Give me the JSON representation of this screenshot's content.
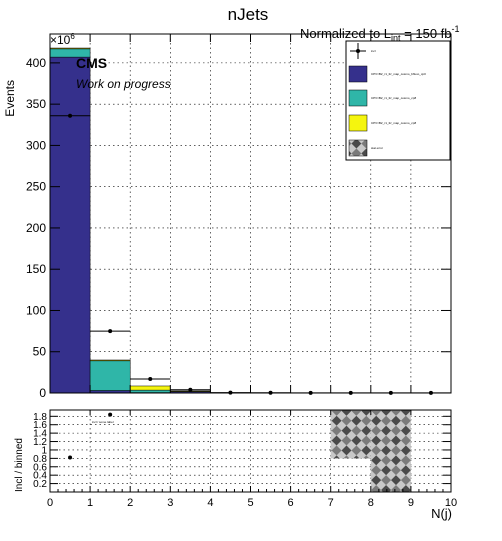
{
  "title": "nJets",
  "normalization": {
    "prefix": "Normalized to L",
    "subscript": "int",
    "suffix": " = 150 fb",
    "superscript": "-1"
  },
  "cms_label": "CMS",
  "cms_sublabel": "Work on progress",
  "colors": {
    "series1": "#35308c",
    "series2": "#2fb6a8",
    "series3": "#f5f50e",
    "frame": "#000000"
  },
  "chart_data": [
    {
      "type": "bar",
      "stacked": true,
      "log_scale": false,
      "grid": true,
      "legend_position": "top-right",
      "xlabel": "N(j)",
      "ylabel": "Events",
      "y_exponent_label": "×10",
      "y_exponent_power": "6",
      "xlim": [
        0,
        10
      ],
      "ylim": [
        0,
        435
      ],
      "x_ticks": [
        0,
        1,
        2,
        3,
        4,
        5,
        6,
        7,
        8,
        9,
        10
      ],
      "y_ticks": [
        0,
        50,
        100,
        150,
        200,
        250,
        300,
        350,
        400
      ],
      "bin_edges": [
        0,
        1,
        2,
        3,
        4,
        5,
        6,
        7,
        8,
        9,
        10
      ],
      "series": [
        {
          "name": "CPV=B2_r1_tlz_map_cosmo_bfluxo_cp0",
          "color_key": "series1",
          "values": [
            407,
            3,
            0.5,
            2,
            0,
            0,
            0,
            0,
            0,
            0
          ]
        },
        {
          "name": "CPV=B2_r1_tlz_map_cosmo_cp8",
          "color_key": "series2",
          "values": [
            10,
            36,
            3,
            0.3,
            0,
            0,
            0,
            0,
            0,
            0
          ]
        },
        {
          "name": "CPV=B2_r1_tlz_map_cosmo_cp8",
          "color_key": "series3",
          "values": [
            1,
            1,
            5,
            0.2,
            0,
            0,
            0,
            0,
            0,
            0
          ]
        }
      ],
      "points": {
        "name": "incl",
        "x": [
          0.5,
          1.5,
          2.5,
          3.5,
          4.5,
          5.5,
          6.5,
          7.5,
          8.5,
          9.5
        ],
        "y": [
          336,
          75,
          17,
          4,
          0.5,
          0.3,
          0.2,
          0.1,
          0.1,
          0.1
        ],
        "xerr": [
          0.5,
          0.5,
          0.5,
          0.5,
          0.5,
          0.5,
          0.5,
          0.5,
          0.5,
          0.5
        ]
      },
      "legend_entries": [
        "incl",
        "CPV=B2_r1_tlz_map_cosmo_bfluxo_cp0",
        "CPV=B2_r1_tlz_map_cosmo_cp8",
        "CPV=B2_r1_tlz_map_cosmo_cp8",
        "stat error"
      ]
    },
    {
      "type": "scatter",
      "grid": true,
      "xlabel": "N(j)",
      "ylabel": "Incl / binned",
      "xlim": [
        0,
        10
      ],
      "ylim": [
        0,
        1.95
      ],
      "x_ticks": [
        0,
        1,
        2,
        3,
        4,
        5,
        6,
        7,
        8,
        9,
        10
      ],
      "y_ticks": [
        0.2,
        0.4,
        0.6,
        0.8,
        1,
        1.2,
        1.4,
        1.6,
        1.8
      ],
      "points": {
        "x": [
          0.5,
          1.5
        ],
        "y": [
          0.82,
          1.84
        ]
      },
      "inline_label": "incl / some label",
      "error_bands": [
        {
          "x0": 7,
          "x1": 8,
          "y0": 0.8,
          "y1": 1.95
        },
        {
          "x0": 8,
          "x1": 9,
          "y0": 0,
          "y1": 1.95
        }
      ]
    }
  ]
}
